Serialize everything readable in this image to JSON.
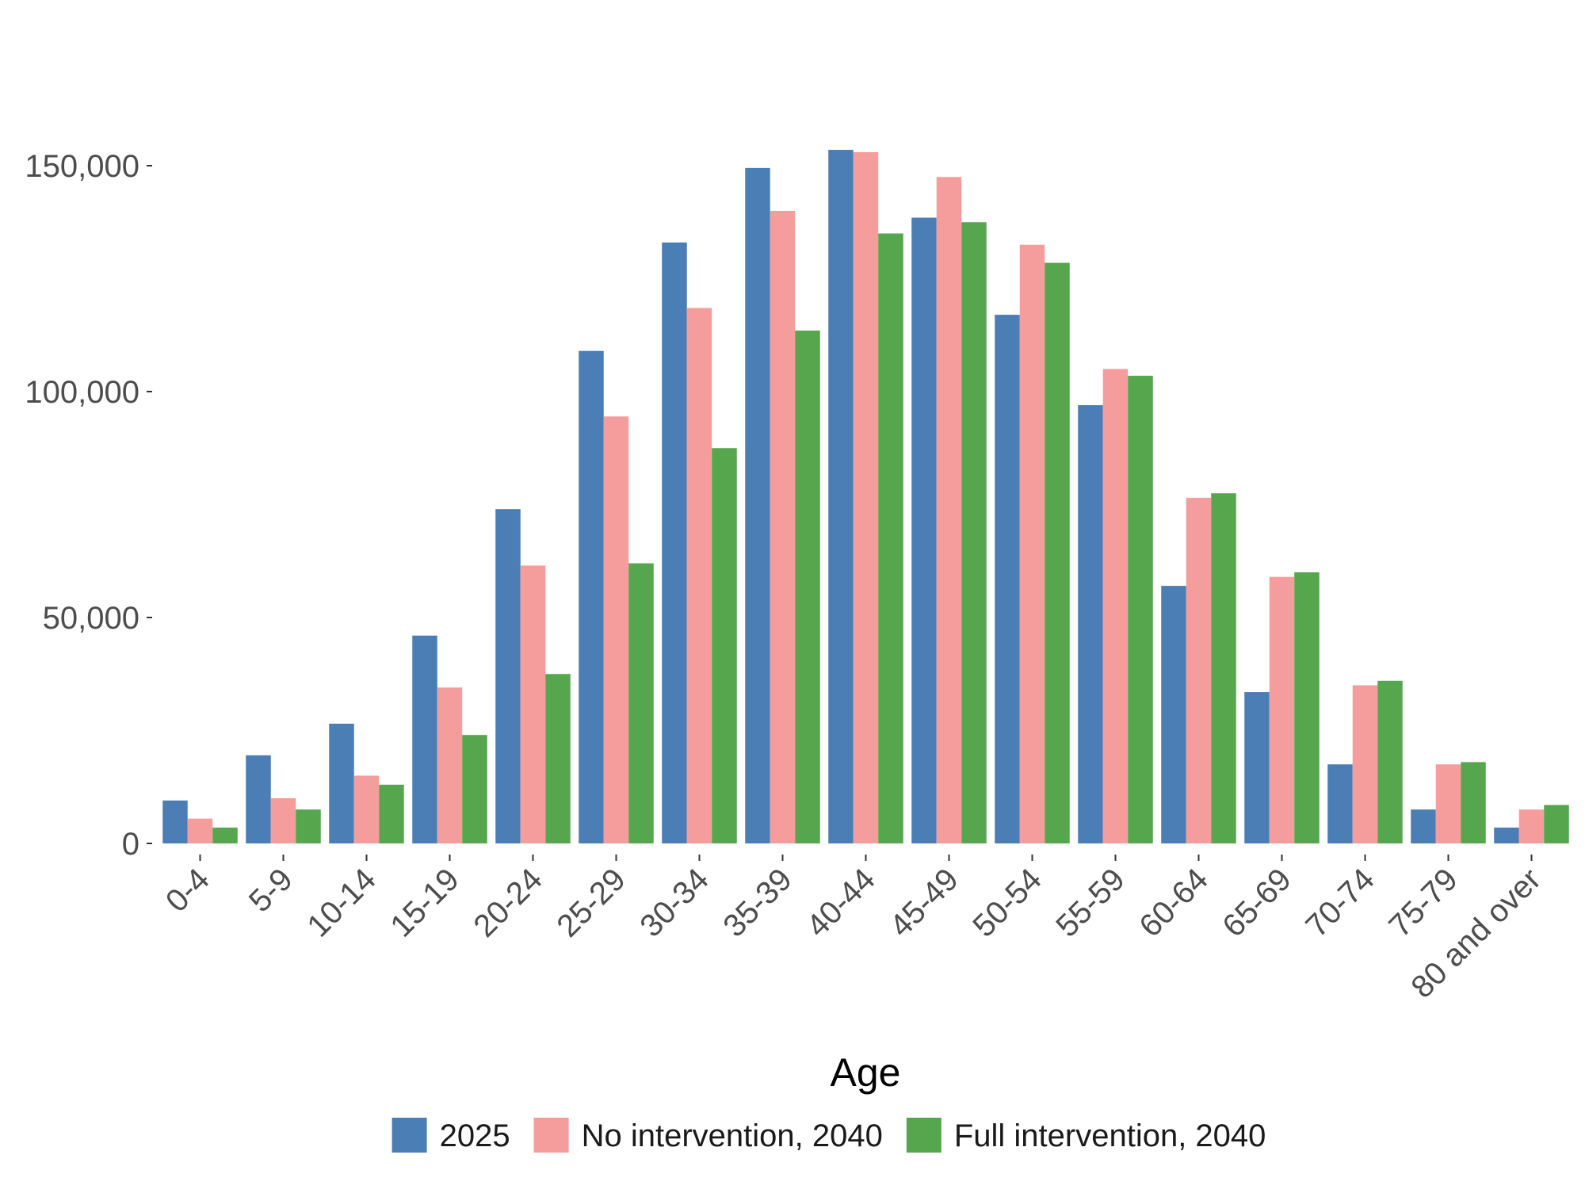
{
  "chart_data": {
    "type": "bar",
    "xlabel": "Age",
    "ylabel": "",
    "categories": [
      "0-4",
      "5-9",
      "10-14",
      "15-19",
      "20-24",
      "25-29",
      "30-34",
      "35-39",
      "40-44",
      "45-49",
      "50-54",
      "55-59",
      "60-64",
      "65-69",
      "70-74",
      "75-79",
      "80 and over"
    ],
    "ylim": [
      0,
      170000
    ],
    "yticks": [
      0,
      50000,
      100000,
      150000
    ],
    "ytick_labels": [
      "0",
      "50,000",
      "100,000",
      "150,000"
    ],
    "legend_position": "bottom",
    "grid": false,
    "series": [
      {
        "name": "2025",
        "color": "#4a7eb5",
        "values": [
          9500,
          19500,
          26500,
          46000,
          74000,
          109000,
          133000,
          149500,
          153500,
          138500,
          117000,
          97000,
          57000,
          33500,
          17500,
          7500,
          3500
        ]
      },
      {
        "name": "No intervention, 2040",
        "color": "#f59d9d",
        "values": [
          5500,
          10000,
          15000,
          34500,
          61500,
          94500,
          118500,
          140000,
          153000,
          147500,
          132500,
          105000,
          76500,
          59000,
          35000,
          17500,
          7500
        ]
      },
      {
        "name": "Full intervention, 2040",
        "color": "#56a64e",
        "values": [
          3500,
          7500,
          13000,
          24000,
          37500,
          62000,
          87500,
          113500,
          135000,
          137500,
          128500,
          103500,
          77500,
          60000,
          36000,
          18000,
          8500
        ]
      }
    ]
  }
}
